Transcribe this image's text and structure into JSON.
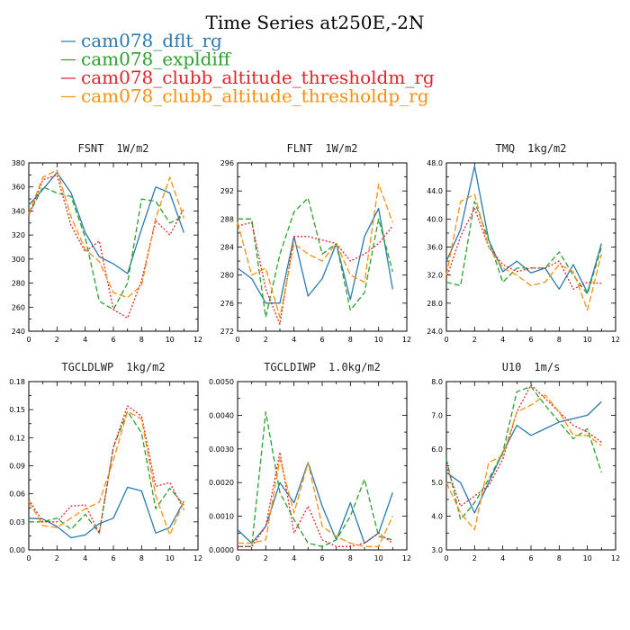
{
  "chart_data": {
    "type": "line",
    "title": "Time Series at250E,-2N",
    "series_styles": [
      {
        "name": "cam078_dflt_rg",
        "color": "#2a7ab0",
        "dash": ""
      },
      {
        "name": "cam078_expldiff",
        "color": "#2ca02c",
        "dash": "6,3"
      },
      {
        "name": "cam078_clubb_altitude_thresholdm_rg",
        "color": "#e0252a",
        "dash": "2,2"
      },
      {
        "name": "cam078_clubb_altitude_thresholdp_rg",
        "color": "#f5900f",
        "dash": "7,3"
      }
    ],
    "x": [
      0,
      1,
      2,
      3,
      4,
      5,
      6,
      7,
      8,
      9,
      10,
      11
    ],
    "xlim": [
      0,
      12
    ],
    "xticks": [
      "0",
      "2",
      "4",
      "6",
      "8",
      "10",
      "12"
    ],
    "panels": [
      {
        "name": "FSNT",
        "unit": "1W/m2",
        "ylim": [
          240,
          380
        ],
        "yticks": [
          "240",
          "260",
          "280",
          "300",
          "320",
          "340",
          "360",
          "380"
        ],
        "series": [
          [
            345,
            358,
            372,
            355,
            322,
            302,
            296,
            288,
            325,
            360,
            355,
            322
          ],
          [
            337,
            360,
            355,
            352,
            318,
            265,
            258,
            280,
            350,
            348,
            330,
            336
          ],
          [
            336,
            366,
            370,
            328,
            306,
            315,
            258,
            251,
            282,
            332,
            320,
            342
          ],
          [
            338,
            368,
            374,
            335,
            308,
            298,
            272,
            268,
            278,
            334,
            368,
            334
          ]
        ]
      },
      {
        "name": "FLNT",
        "unit": "1W/m2",
        "ylim": [
          272,
          296
        ],
        "yticks": [
          "272",
          "276",
          "280",
          "284",
          "288",
          "292",
          "296"
        ],
        "series": [
          [
            281,
            279.5,
            276,
            276,
            285.5,
            277,
            279.5,
            284.5,
            276.5,
            285.5,
            289.5,
            278
          ],
          [
            288,
            288,
            274,
            283,
            289,
            291,
            283,
            284.5,
            275,
            277.5,
            288,
            280.5
          ],
          [
            287,
            287.5,
            278,
            273,
            285.5,
            285.5,
            285,
            284.5,
            282,
            283,
            284.5,
            287
          ],
          [
            287.5,
            280,
            281,
            274,
            284.5,
            283,
            282,
            284.5,
            280,
            279,
            293,
            287.5
          ]
        ]
      },
      {
        "name": "TMQ",
        "unit": "1kg/m2",
        "ylim": [
          24,
          48
        ],
        "yticks": [
          "24.0",
          "28.0",
          "32.0",
          "36.0",
          "40.0",
          "44.0",
          "48.0"
        ],
        "series": [
          [
            34,
            38.5,
            47.5,
            37,
            32.5,
            34,
            32.3,
            33,
            30,
            33.5,
            29.5,
            36.5
          ],
          [
            31,
            30.5,
            42.5,
            37,
            31,
            33,
            33,
            33,
            35.3,
            32,
            29.3,
            36
          ],
          [
            31.5,
            37.5,
            41.5,
            36,
            33.5,
            32.5,
            33,
            33,
            34,
            30,
            31,
            30.8
          ],
          [
            32,
            42.5,
            43.5,
            36,
            33,
            32,
            30.5,
            31,
            33.5,
            32.5,
            27,
            35
          ]
        ]
      },
      {
        "name": "TGCLDLWP",
        "unit": "1kg/m2",
        "ylim": [
          0,
          0.18
        ],
        "yticks": [
          "0.00",
          "0.03",
          "0.06",
          "0.09",
          "0.12",
          "0.15",
          "0.18"
        ],
        "series": [
          [
            0.034,
            0.033,
            0.025,
            0.013,
            0.016,
            0.028,
            0.034,
            0.067,
            0.063,
            0.018,
            0.024,
            0.052
          ],
          [
            0.03,
            0.03,
            0.034,
            0.022,
            0.038,
            0.018,
            0.11,
            0.148,
            0.125,
            0.044,
            0.066,
            0.048
          ],
          [
            0.054,
            0.03,
            0.03,
            0.047,
            0.048,
            0.018,
            0.11,
            0.154,
            0.143,
            0.068,
            0.072,
            0.043
          ],
          [
            0.052,
            0.026,
            0.024,
            0.034,
            0.044,
            0.051,
            0.096,
            0.148,
            0.14,
            0.058,
            0.016,
            0.052
          ]
        ]
      },
      {
        "name": "TGCLDIWP",
        "unit": "1.0kg/m2",
        "ylim": [
          0,
          0.005
        ],
        "yticks": [
          "0.0000",
          "0.0010",
          "0.0020",
          "0.0030",
          "0.0040",
          "0.0050"
        ],
        "series": [
          [
            0.0006,
            0.0002,
            0.0007,
            0.002,
            0.0014,
            0.0026,
            0.0013,
            0.0003,
            0.0014,
            0.0002,
            0.0005,
            0.0017
          ],
          [
            0.0001,
            0.0001,
            0.0041,
            0.0017,
            0.0009,
            0.0002,
            0.0001,
            0.0003,
            0.001,
            0.0021,
            0.0004,
            0.0003
          ],
          [
            0.0001,
            0.0001,
            0.0007,
            0.0029,
            0.0005,
            0.0013,
            0.0003,
            0.0001,
            0.0001,
            0.0002,
            0.0005,
            0.0002
          ],
          [
            0.0002,
            0.0002,
            0.0003,
            0.0027,
            0.0011,
            0.0026,
            0.0007,
            0.0004,
            0.0002,
            0.0001,
            0.0001,
            0.001
          ]
        ]
      },
      {
        "name": "U10",
        "unit": "1m/s",
        "ylim": [
          3,
          8
        ],
        "yticks": [
          "3.0",
          "4.0",
          "5.0",
          "6.0",
          "7.0",
          "8.0"
        ],
        "series": [
          [
            5.3,
            5.0,
            4.1,
            5.0,
            5.9,
            6.7,
            6.4,
            6.6,
            6.8,
            6.9,
            7.0,
            7.4
          ],
          [
            5.7,
            3.9,
            4.4,
            5.1,
            5.9,
            7.7,
            7.85,
            7.3,
            6.8,
            6.3,
            6.6,
            5.3
          ],
          [
            5.5,
            4.3,
            4.6,
            4.9,
            5.7,
            7.1,
            7.9,
            7.5,
            7.1,
            6.7,
            6.5,
            6.2
          ],
          [
            5.0,
            4.1,
            3.6,
            5.6,
            5.8,
            7.1,
            7.3,
            7.6,
            7.1,
            6.4,
            6.4,
            6.1
          ]
        ]
      }
    ]
  }
}
